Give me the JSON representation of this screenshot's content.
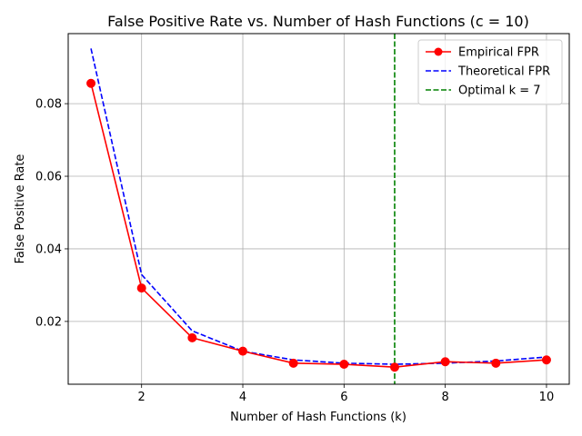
{
  "chart_data": {
    "type": "line",
    "title": "False Positive Rate vs. Number of Hash Functions (c = 10)",
    "xlabel": "Number of Hash Functions (k)",
    "ylabel": "False Positive Rate",
    "xlim": [
      0.55,
      10.45
    ],
    "ylim": [
      0.0027,
      0.0993
    ],
    "xticks": [
      2,
      4,
      6,
      8,
      10
    ],
    "xtick_labels": [
      "2",
      "4",
      "6",
      "8",
      "10"
    ],
    "yticks": [
      0.02,
      0.04,
      0.06,
      0.08
    ],
    "ytick_labels": [
      "0.02",
      "0.04",
      "0.06",
      "0.08"
    ],
    "grid": true,
    "legend_position": "top-right",
    "x": [
      1,
      2,
      3,
      4,
      5,
      6,
      7,
      8,
      9,
      10
    ],
    "series": [
      {
        "name": "Empirical FPR",
        "color": "#ff0000",
        "style": "solid",
        "marker": "circle",
        "values": [
          0.0856,
          0.0292,
          0.0155,
          0.0118,
          0.0085,
          0.0082,
          0.0074,
          0.0089,
          0.0085,
          0.0094
        ]
      },
      {
        "name": "Theoretical FPR",
        "color": "#0000ff",
        "style": "dashed",
        "marker": "none",
        "values": [
          0.0952,
          0.0329,
          0.0174,
          0.0118,
          0.0094,
          0.0085,
          0.0082,
          0.0085,
          0.0091,
          0.0102
        ]
      }
    ],
    "vlines": [
      {
        "name": "Optimal k = 7",
        "x": 7,
        "color": "#008000",
        "style": "dashed"
      }
    ]
  }
}
